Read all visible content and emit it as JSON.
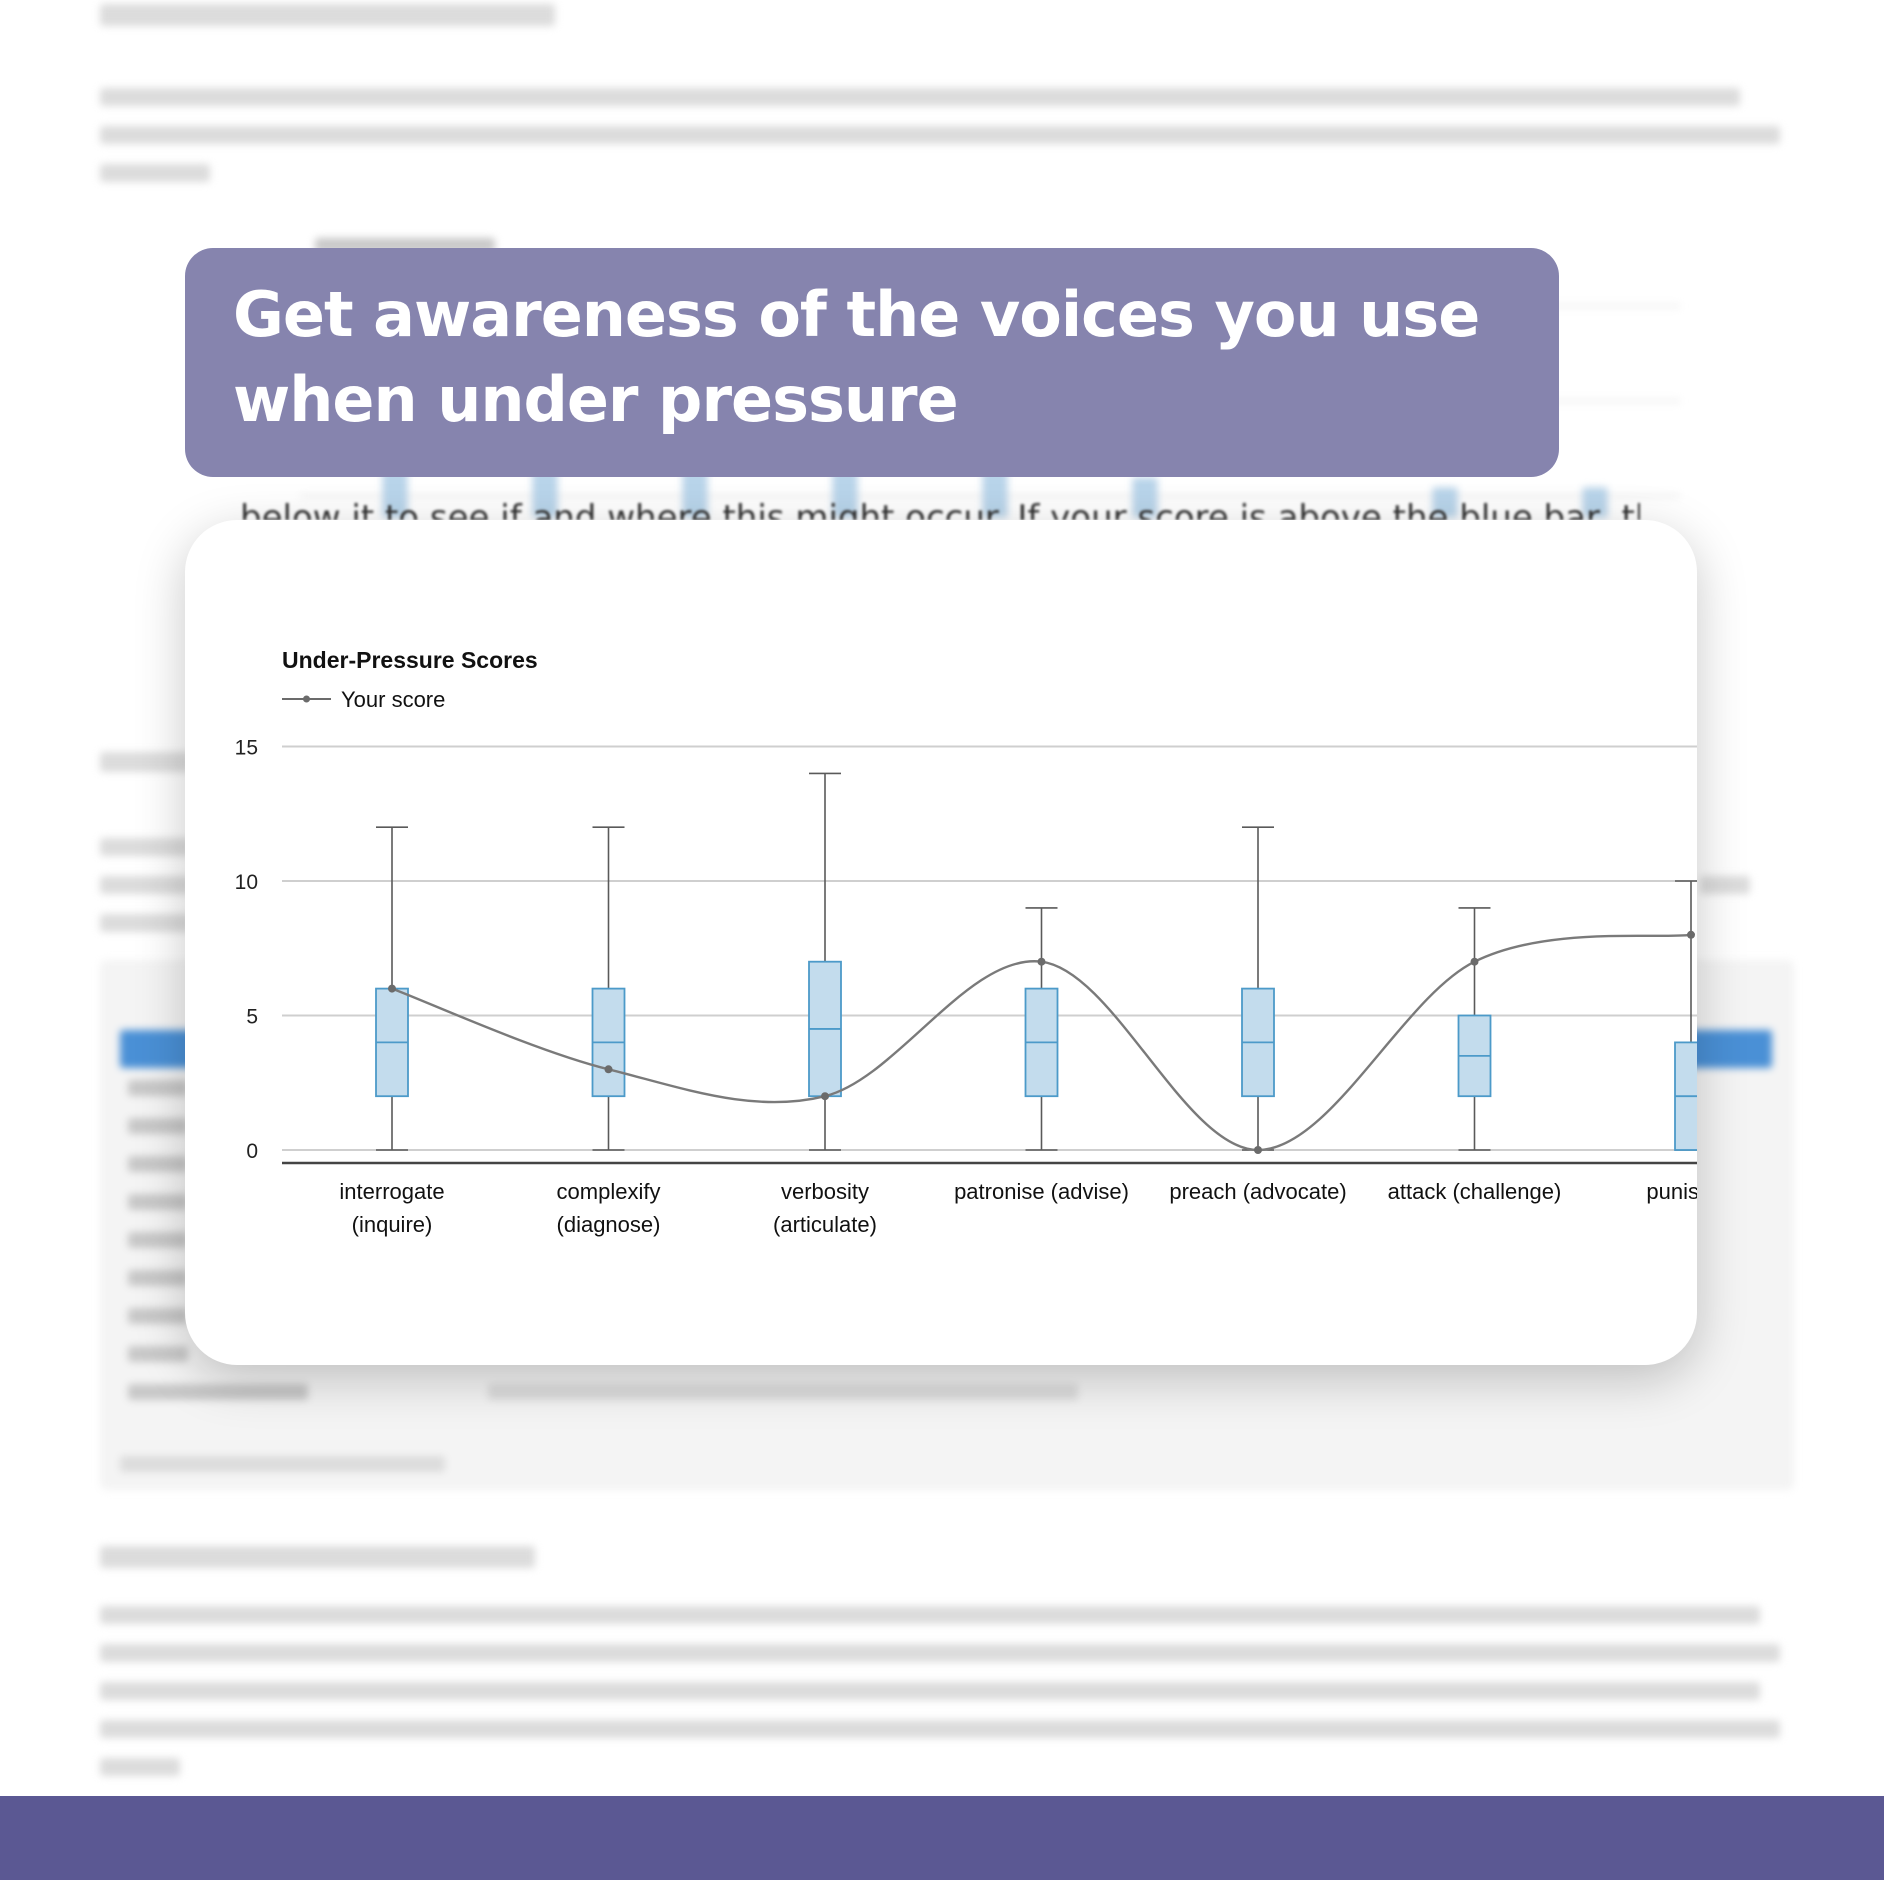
{
  "banner": {
    "title": "Get awareness of the voices you use when under pressure"
  },
  "sliver": {
    "text": "below it to see if and where this might occur. If your score is above the blue bar, this m"
  },
  "colors": {
    "banner": "#8684ae",
    "footer": "#5b5893",
    "box_fill": "#c3dced",
    "box_stroke": "#4c9ac9",
    "score_line": "#7a7a7a"
  },
  "chart_data": {
    "type": "box",
    "title": "Under-Pressure Scores",
    "legend": {
      "position": "top-left",
      "entries": [
        "Your score"
      ]
    },
    "ylim": [
      0,
      15
    ],
    "yticks": [
      0,
      5,
      10,
      15
    ],
    "grid": true,
    "categories": [
      [
        "interrogate",
        "(inquire)"
      ],
      [
        "complexify",
        "(diagnose)"
      ],
      [
        "verbosity",
        "(articulate)"
      ],
      [
        "patronise (advise)"
      ],
      [
        "preach (advocate)"
      ],
      [
        "attack (challenge)"
      ],
      [
        "punish (c"
      ]
    ],
    "boxes": [
      {
        "min": 0,
        "q1": 2,
        "median": 4,
        "q3": 6,
        "max": 12
      },
      {
        "min": 0,
        "q1": 2,
        "median": 4,
        "q3": 6,
        "max": 12
      },
      {
        "min": 0,
        "q1": 2,
        "median": 4.5,
        "q3": 7,
        "max": 14
      },
      {
        "min": 0,
        "q1": 2,
        "median": 4,
        "q3": 6,
        "max": 9
      },
      {
        "min": 0,
        "q1": 2,
        "median": 4,
        "q3": 6,
        "max": 12
      },
      {
        "min": 0,
        "q1": 2,
        "median": 3.5,
        "q3": 5,
        "max": 9
      },
      {
        "min": 0,
        "q1": 0,
        "median": 2,
        "q3": 4,
        "max": 10
      }
    ],
    "series": [
      {
        "name": "Your score",
        "values": [
          6,
          3,
          2,
          7,
          0,
          7,
          8
        ]
      }
    ]
  }
}
